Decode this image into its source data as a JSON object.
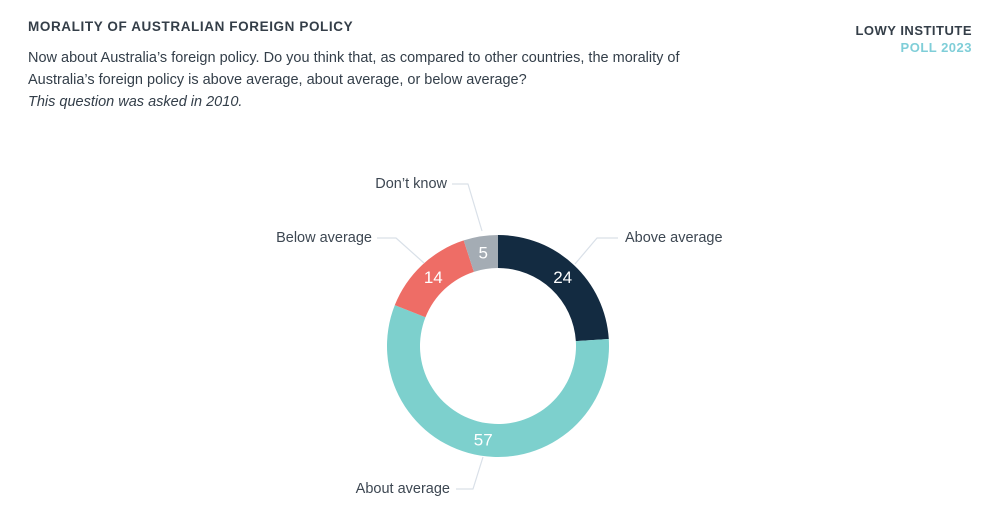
{
  "header": {
    "title": "MORALITY OF AUSTRALIAN FOREIGN POLICY",
    "intro_lines": [
      "Now about Australia’s foreign policy. Do you think that, as compared to other countries, the morality of",
      "Australia’s foreign policy is above average, about average, or below average?"
    ],
    "note": "This question was asked in 2010."
  },
  "logo": {
    "line1": "LOWY INSTITUTE",
    "line2": "POLL 2023",
    "line1_color": "#343e48",
    "line2_color": "#7fced8"
  },
  "chart_data": {
    "type": "pie",
    "variant": "donut",
    "title": "Morality of Australian foreign policy",
    "units": "percent",
    "start_angle_deg": 0,
    "direction": "clockwise",
    "segments": [
      {
        "label": "Above average",
        "value": 24,
        "color": "#132b41"
      },
      {
        "label": "About average",
        "value": 57,
        "color": "#7dd0cd"
      },
      {
        "label": "Below average",
        "value": 14,
        "color": "#ee6d66"
      },
      {
        "label": "Don’t know",
        "value": 5,
        "color": "#a4acb4"
      }
    ],
    "value_label_color": "#ffffff",
    "leader_line_color": "#d9e0e8"
  }
}
